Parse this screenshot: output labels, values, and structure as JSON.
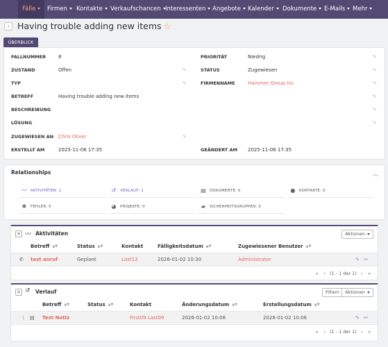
{
  "nav": {
    "items": [
      "Fälle",
      "Firmen",
      "Kontakte",
      "Verkaufschancen",
      "Interessenten",
      "Angebote",
      "Kalender",
      "Dokumente",
      "E-Mails",
      "Mehr"
    ]
  },
  "header": {
    "back_label": "‹",
    "title": "Having trouble adding new items",
    "star": "☆",
    "tab": "ÜBERBLICK"
  },
  "detail": {
    "fallnummer_label": "FALLNUMMER",
    "fallnummer": "8",
    "zustand_label": "ZUSTAND",
    "zustand": "Offen",
    "typ_label": "TYP",
    "typ": "",
    "betreff_label": "BETREFF",
    "betreff": "Having trouble adding new items",
    "beschreibung_label": "BESCHREIBUNG",
    "loesung_label": "LÖSUNG",
    "zugewiesen_label": "ZUGEWIESEN AN",
    "zugewiesen": "Chris Oliver",
    "erstellt_label": "ERSTELLT AM",
    "erstellt": "2025-11-06 17:35",
    "prioritaet_label": "PRIORITÄT",
    "prioritaet": "Niedrig",
    "status_label": "STATUS",
    "status": "Zugewiesen",
    "firmenname_label": "FIRMENNAME",
    "firmenname": "Hammer Group Inc",
    "geaendert_label": "GEÄNDERT AM",
    "geaendert": "2025-11-06 17:35"
  },
  "relationships": {
    "title": "Relationships",
    "items": [
      {
        "label": "AKTIVITÄTEN: 1",
        "icon": "activity-icon"
      },
      {
        "label": "VERLAUF: 1",
        "icon": "history-icon"
      },
      {
        "label": "DOKUMENTE: 0",
        "icon": "document-icon"
      },
      {
        "label": "KONTAKTE: 0",
        "icon": "person-icon"
      },
      {
        "label": "FEHLER: 0",
        "icon": "bug-icon"
      },
      {
        "label": "PROJEKTE: 0",
        "icon": "pie-chart-icon"
      },
      {
        "label": "SICHERHEITSGRUPPEN: 0",
        "icon": "lock-icon"
      }
    ]
  },
  "aktivitaeten": {
    "title": "Aktivitäten",
    "aktionen": "Aktionen",
    "columns": [
      "Betreff",
      "Status",
      "Kontakt",
      "Fälligkeitsdatum",
      "Zugewiesener Benutzer"
    ],
    "row": {
      "betreff": "test anruf",
      "status": "Geplant",
      "kontakt": "Last13",
      "faellig": "2026-01-02 10:30",
      "benutzer": "Administrator"
    },
    "pager": "(1 - 1 der 1)"
  },
  "verlauf": {
    "title": "Verlauf",
    "filtern": "Filtern",
    "aktionen": "Aktionen",
    "columns": [
      "Betreff",
      "Status",
      "Kontakt",
      "Änderungsdatum",
      "Erstellungsdatum"
    ],
    "row": {
      "betreff": "Test Notiz",
      "status": "",
      "kontakt": "First09 Last09",
      "geaendert": "2026-01-02 10:06",
      "erstellt": "2026-01-02 10:06"
    },
    "pager": "(1 - 1 der 1)"
  },
  "colors": {
    "nav_bg": "#534a74",
    "accent": "#f7a47b",
    "link": "#e4665b",
    "active_rel": "#6560c6"
  }
}
